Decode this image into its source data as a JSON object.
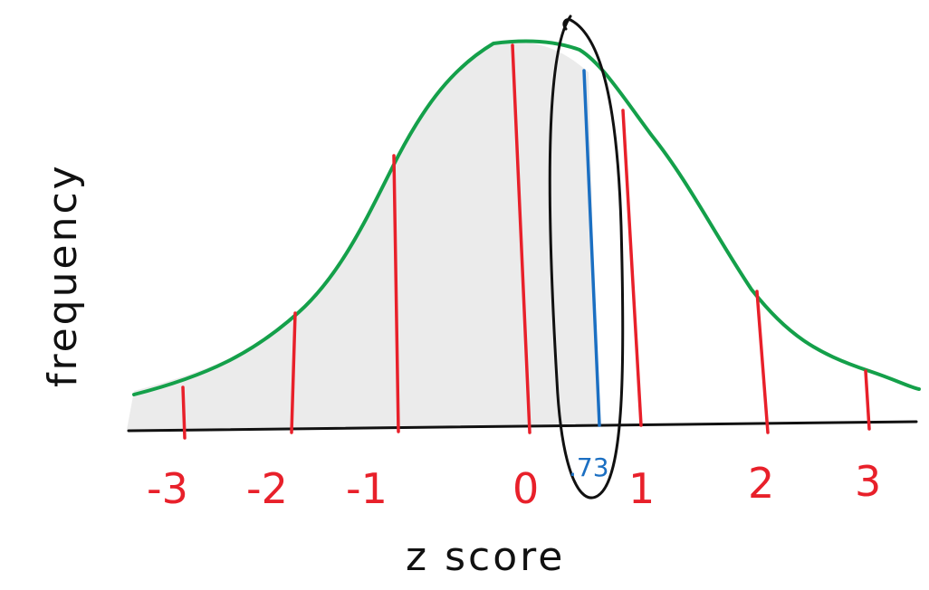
{
  "axes": {
    "y_label": "frequency",
    "x_label": "z score"
  },
  "ticks": [
    {
      "label": "-3",
      "z": -3
    },
    {
      "label": "-2",
      "z": -2
    },
    {
      "label": "-1",
      "z": -1
    },
    {
      "label": "0",
      "z": 0
    },
    {
      "label": "1",
      "z": 1
    },
    {
      "label": "2",
      "z": 2
    },
    {
      "label": "3",
      "z": 3
    }
  ],
  "marked_value": {
    "label": ".73",
    "z": 0.73
  },
  "colors": {
    "curve": "#14a04a",
    "ticks": "#e8202a",
    "marked": "#1b6fc2",
    "axis": "#111111",
    "shading": "#e9e9e9"
  }
}
